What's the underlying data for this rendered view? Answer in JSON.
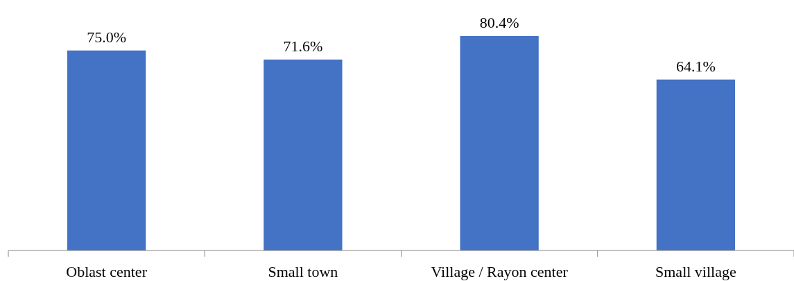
{
  "chart_data": {
    "type": "bar",
    "categories": [
      "Oblast center",
      "Small town",
      "Village / Rayon center",
      "Small village"
    ],
    "values": [
      75.0,
      71.6,
      80.4,
      64.1
    ],
    "color": "#4472c4",
    "value_labels": [
      "75.0%",
      "71.6%",
      "80.4%",
      "64.1%"
    ]
  }
}
